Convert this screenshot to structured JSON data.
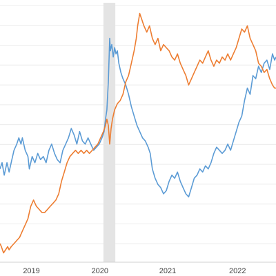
{
  "chart_data": {
    "type": "line",
    "title": "",
    "xlabel": "",
    "ylabel": "",
    "x_ticks": [
      "2019",
      "2020",
      "2021",
      "2022"
    ],
    "xlim": [
      2018.6,
      2022.55
    ],
    "grid": "horizontal",
    "recession_band": [
      2020.08,
      2020.25
    ],
    "series": [
      {
        "color": "#5b9bd5",
        "points": [
          [
            2018.6,
            0.58
          ],
          [
            2018.63,
            0.6
          ],
          [
            2018.66,
            0.56
          ],
          [
            2018.7,
            0.6
          ],
          [
            2018.73,
            0.57
          ],
          [
            2018.77,
            0.61
          ],
          [
            2018.8,
            0.64
          ],
          [
            2018.84,
            0.66
          ],
          [
            2018.87,
            0.68
          ],
          [
            2018.9,
            0.66
          ],
          [
            2018.92,
            0.68
          ],
          [
            2018.96,
            0.64
          ],
          [
            2019.0,
            0.62
          ],
          [
            2019.02,
            0.58
          ],
          [
            2019.06,
            0.62
          ],
          [
            2019.1,
            0.6
          ],
          [
            2019.14,
            0.63
          ],
          [
            2019.18,
            0.61
          ],
          [
            2019.22,
            0.62
          ],
          [
            2019.26,
            0.6
          ],
          [
            2019.3,
            0.64
          ],
          [
            2019.34,
            0.66
          ],
          [
            2019.38,
            0.63
          ],
          [
            2019.42,
            0.61
          ],
          [
            2019.46,
            0.6
          ],
          [
            2019.5,
            0.64
          ],
          [
            2019.54,
            0.66
          ],
          [
            2019.58,
            0.68
          ],
          [
            2019.62,
            0.71
          ],
          [
            2019.66,
            0.69
          ],
          [
            2019.7,
            0.66
          ],
          [
            2019.74,
            0.7
          ],
          [
            2019.78,
            0.67
          ],
          [
            2019.82,
            0.66
          ],
          [
            2019.86,
            0.68
          ],
          [
            2019.9,
            0.66
          ],
          [
            2019.94,
            0.64
          ],
          [
            2019.98,
            0.65
          ],
          [
            2020.02,
            0.66
          ],
          [
            2020.06,
            0.68
          ],
          [
            2020.09,
            0.7
          ],
          [
            2020.11,
            0.74
          ],
          [
            2020.13,
            0.77
          ],
          [
            2020.15,
            0.86
          ],
          [
            2020.17,
            1.0
          ],
          [
            2020.18,
            0.96
          ],
          [
            2020.2,
            0.98
          ],
          [
            2020.22,
            0.94
          ],
          [
            2020.24,
            0.97
          ],
          [
            2020.26,
            0.95
          ],
          [
            2020.28,
            0.96
          ],
          [
            2020.3,
            0.92
          ],
          [
            2020.33,
            0.89
          ],
          [
            2020.36,
            0.87
          ],
          [
            2020.4,
            0.85
          ],
          [
            2020.44,
            0.82
          ],
          [
            2020.48,
            0.78
          ],
          [
            2020.52,
            0.75
          ],
          [
            2020.56,
            0.72
          ],
          [
            2020.6,
            0.7
          ],
          [
            2020.64,
            0.68
          ],
          [
            2020.68,
            0.67
          ],
          [
            2020.72,
            0.65
          ],
          [
            2020.75,
            0.63
          ],
          [
            2020.78,
            0.58
          ],
          [
            2020.82,
            0.55
          ],
          [
            2020.86,
            0.53
          ],
          [
            2020.9,
            0.52
          ],
          [
            2020.94,
            0.5
          ],
          [
            2020.98,
            0.51
          ],
          [
            2021.02,
            0.54
          ],
          [
            2021.06,
            0.56
          ],
          [
            2021.1,
            0.55
          ],
          [
            2021.14,
            0.57
          ],
          [
            2021.18,
            0.54
          ],
          [
            2021.22,
            0.52
          ],
          [
            2021.26,
            0.5
          ],
          [
            2021.3,
            0.49
          ],
          [
            2021.34,
            0.52
          ],
          [
            2021.38,
            0.55
          ],
          [
            2021.42,
            0.56
          ],
          [
            2021.46,
            0.58
          ],
          [
            2021.5,
            0.57
          ],
          [
            2021.54,
            0.59
          ],
          [
            2021.58,
            0.58
          ],
          [
            2021.62,
            0.6
          ],
          [
            2021.66,
            0.63
          ],
          [
            2021.7,
            0.65
          ],
          [
            2021.74,
            0.64
          ],
          [
            2021.78,
            0.63
          ],
          [
            2021.82,
            0.64
          ],
          [
            2021.86,
            0.66
          ],
          [
            2021.9,
            0.64
          ],
          [
            2021.94,
            0.67
          ],
          [
            2021.98,
            0.7
          ],
          [
            2022.02,
            0.73
          ],
          [
            2022.06,
            0.75
          ],
          [
            2022.1,
            0.8
          ],
          [
            2022.14,
            0.84
          ],
          [
            2022.18,
            0.82
          ],
          [
            2022.22,
            0.88
          ],
          [
            2022.26,
            0.87
          ],
          [
            2022.3,
            0.91
          ],
          [
            2022.34,
            0.89
          ],
          [
            2022.38,
            0.92
          ],
          [
            2022.42,
            0.93
          ],
          [
            2022.46,
            0.9
          ],
          [
            2022.5,
            0.95
          ],
          [
            2022.53,
            0.93
          ],
          [
            2022.55,
            0.94
          ]
        ]
      },
      {
        "color": "#ed7d31",
        "points": [
          [
            2018.6,
            0.34
          ],
          [
            2018.62,
            0.33
          ],
          [
            2018.65,
            0.31
          ],
          [
            2018.68,
            0.32
          ],
          [
            2018.71,
            0.33
          ],
          [
            2018.73,
            0.32
          ],
          [
            2018.76,
            0.33
          ],
          [
            2018.8,
            0.34
          ],
          [
            2018.84,
            0.35
          ],
          [
            2018.88,
            0.36
          ],
          [
            2018.92,
            0.38
          ],
          [
            2018.96,
            0.4
          ],
          [
            2019.0,
            0.42
          ],
          [
            2019.02,
            0.44
          ],
          [
            2019.04,
            0.46
          ],
          [
            2019.06,
            0.47
          ],
          [
            2019.08,
            0.48
          ],
          [
            2019.12,
            0.46
          ],
          [
            2019.16,
            0.45
          ],
          [
            2019.2,
            0.44
          ],
          [
            2019.24,
            0.44
          ],
          [
            2019.28,
            0.45
          ],
          [
            2019.32,
            0.46
          ],
          [
            2019.36,
            0.47
          ],
          [
            2019.4,
            0.48
          ],
          [
            2019.44,
            0.5
          ],
          [
            2019.48,
            0.54
          ],
          [
            2019.52,
            0.57
          ],
          [
            2019.56,
            0.6
          ],
          [
            2019.6,
            0.62
          ],
          [
            2019.64,
            0.63
          ],
          [
            2019.68,
            0.64
          ],
          [
            2019.72,
            0.63
          ],
          [
            2019.76,
            0.64
          ],
          [
            2019.8,
            0.63
          ],
          [
            2019.84,
            0.64
          ],
          [
            2019.88,
            0.63
          ],
          [
            2019.92,
            0.64
          ],
          [
            2019.96,
            0.65
          ],
          [
            2020.0,
            0.66
          ],
          [
            2020.04,
            0.68
          ],
          [
            2020.08,
            0.7
          ],
          [
            2020.11,
            0.72
          ],
          [
            2020.13,
            0.74
          ],
          [
            2020.15,
            0.72
          ],
          [
            2020.17,
            0.66
          ],
          [
            2020.19,
            0.71
          ],
          [
            2020.21,
            0.74
          ],
          [
            2020.24,
            0.77
          ],
          [
            2020.28,
            0.79
          ],
          [
            2020.32,
            0.8
          ],
          [
            2020.36,
            0.82
          ],
          [
            2020.4,
            0.86
          ],
          [
            2020.44,
            0.88
          ],
          [
            2020.48,
            0.92
          ],
          [
            2020.52,
            0.96
          ],
          [
            2020.55,
            1.0
          ],
          [
            2020.57,
            1.04
          ],
          [
            2020.6,
            1.08
          ],
          [
            2020.63,
            1.06
          ],
          [
            2020.66,
            1.04
          ],
          [
            2020.7,
            1.02
          ],
          [
            2020.74,
            1.04
          ],
          [
            2020.78,
            1.0
          ],
          [
            2020.82,
            0.98
          ],
          [
            2020.86,
            1.0
          ],
          [
            2020.9,
            0.96
          ],
          [
            2020.94,
            0.98
          ],
          [
            2020.98,
            0.97
          ],
          [
            2021.02,
            0.96
          ],
          [
            2021.06,
            0.94
          ],
          [
            2021.1,
            0.93
          ],
          [
            2021.14,
            0.95
          ],
          [
            2021.18,
            0.92
          ],
          [
            2021.22,
            0.9
          ],
          [
            2021.26,
            0.88
          ],
          [
            2021.3,
            0.85
          ],
          [
            2021.34,
            0.87
          ],
          [
            2021.38,
            0.89
          ],
          [
            2021.42,
            0.91
          ],
          [
            2021.46,
            0.93
          ],
          [
            2021.5,
            0.92
          ],
          [
            2021.54,
            0.94
          ],
          [
            2021.58,
            0.96
          ],
          [
            2021.62,
            0.93
          ],
          [
            2021.66,
            0.91
          ],
          [
            2021.7,
            0.93
          ],
          [
            2021.74,
            0.92
          ],
          [
            2021.78,
            0.94
          ],
          [
            2021.82,
            0.93
          ],
          [
            2021.86,
            0.95
          ],
          [
            2021.9,
            0.93
          ],
          [
            2021.94,
            0.95
          ],
          [
            2021.98,
            0.97
          ],
          [
            2022.02,
            1.0
          ],
          [
            2022.06,
            1.03
          ],
          [
            2022.1,
            1.02
          ],
          [
            2022.14,
            1.04
          ],
          [
            2022.18,
            1.0
          ],
          [
            2022.22,
            0.98
          ],
          [
            2022.26,
            0.96
          ],
          [
            2022.3,
            0.92
          ],
          [
            2022.34,
            0.91
          ],
          [
            2022.38,
            0.89
          ],
          [
            2022.42,
            0.9
          ],
          [
            2022.46,
            0.87
          ],
          [
            2022.5,
            0.85
          ],
          [
            2022.53,
            0.84
          ],
          [
            2022.55,
            0.84
          ]
        ]
      }
    ]
  }
}
